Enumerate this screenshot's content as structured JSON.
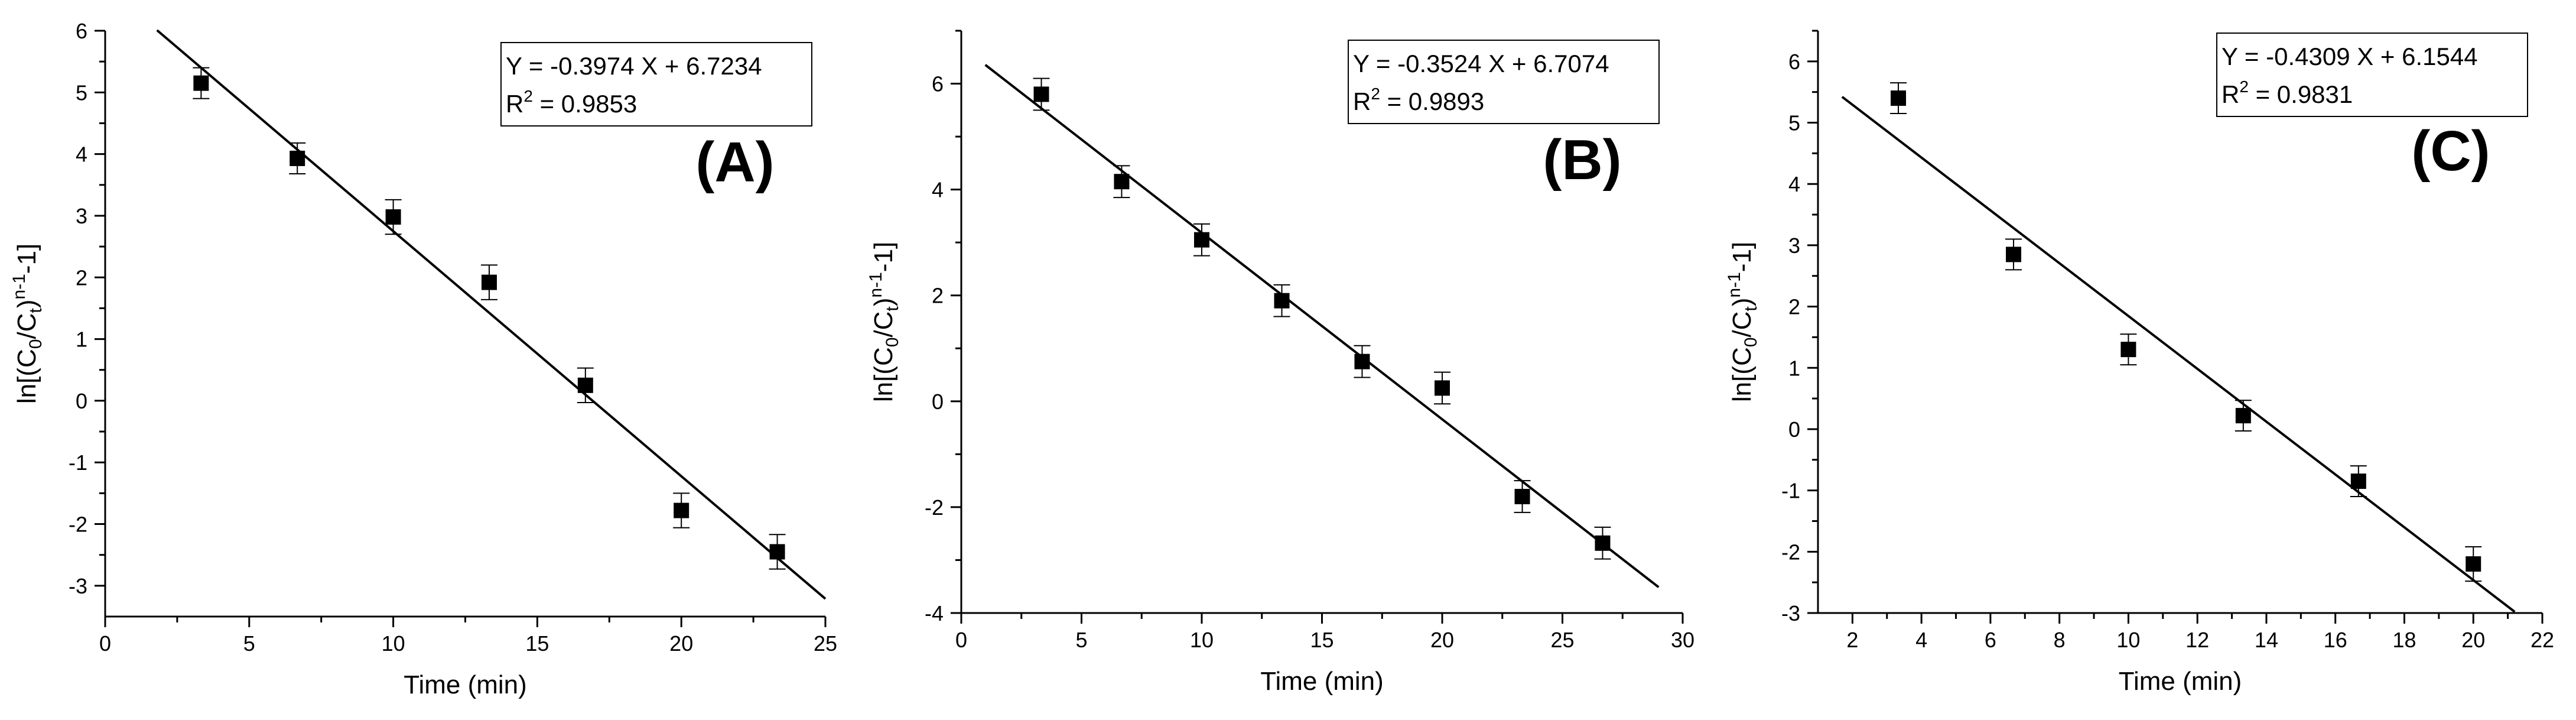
{
  "chart_data": [
    {
      "type": "scatter",
      "panel_label": "(A)",
      "xlabel": "Time (min)",
      "ylabel": {
        "base": "ln[(C",
        "sub0": "0",
        "mid": "/C",
        "sub1": "t",
        "close": ")",
        "sup": "n-1",
        "tail": "-1]"
      },
      "xlim": [
        0,
        25
      ],
      "ylim": [
        -3.5,
        6
      ],
      "xticks": [
        0,
        5,
        10,
        15,
        20,
        25
      ],
      "yticks": [
        -3,
        -2,
        -1,
        0,
        1,
        2,
        3,
        4,
        5,
        6
      ],
      "equation": {
        "line1": "Y = -0.3974 X + 6.7234",
        "r2_prefix": "R",
        "r2_sup": "2",
        "r2_value": " = 0.9853"
      },
      "fit": {
        "slope": -0.3974,
        "intercept": 6.7234,
        "x_range": [
          1.8,
          25
        ]
      },
      "points": [
        {
          "x": 3.33,
          "y": 5.15,
          "err": 0.25
        },
        {
          "x": 6.67,
          "y": 3.93,
          "err": 0.25
        },
        {
          "x": 10.0,
          "y": 2.98,
          "err": 0.28
        },
        {
          "x": 13.33,
          "y": 1.92,
          "err": 0.28
        },
        {
          "x": 16.67,
          "y": 0.25,
          "err": 0.28
        },
        {
          "x": 20.0,
          "y": -1.78,
          "err": 0.28
        },
        {
          "x": 23.33,
          "y": -2.45,
          "err": 0.28
        }
      ],
      "grid": false,
      "legend": "top-right"
    },
    {
      "type": "scatter",
      "panel_label": "(B)",
      "xlabel": "Time (min)",
      "ylabel": {
        "base": "ln[(C",
        "sub0": "0",
        "mid": "/C",
        "sub1": "t",
        "close": ")",
        "sup": "n-1",
        "tail": "-1]"
      },
      "xlim": [
        0,
        30
      ],
      "ylim": [
        -4,
        7
      ],
      "xticks": [
        0,
        5,
        10,
        15,
        20,
        25,
        30
      ],
      "yticks": [
        -4,
        -2,
        0,
        2,
        4,
        6
      ],
      "equation": {
        "line1": "Y = -0.3524 X + 6.7074",
        "r2_prefix": "R",
        "r2_sup": "2",
        "r2_value": " = 0.9893"
      },
      "fit": {
        "slope": -0.3524,
        "intercept": 6.7074,
        "x_range": [
          1,
          29
        ]
      },
      "points": [
        {
          "x": 3.33,
          "y": 5.8,
          "err": 0.3
        },
        {
          "x": 6.67,
          "y": 4.15,
          "err": 0.3
        },
        {
          "x": 10.0,
          "y": 3.05,
          "err": 0.3
        },
        {
          "x": 13.33,
          "y": 1.9,
          "err": 0.3
        },
        {
          "x": 16.67,
          "y": 0.75,
          "err": 0.3
        },
        {
          "x": 20.0,
          "y": 0.25,
          "err": 0.3
        },
        {
          "x": 23.33,
          "y": -1.8,
          "err": 0.3
        },
        {
          "x": 26.67,
          "y": -2.68,
          "err": 0.3
        }
      ],
      "grid": false,
      "legend": "top-right"
    },
    {
      "type": "scatter",
      "panel_label": "(C)",
      "xlabel": "Time (min)",
      "ylabel": {
        "base": "ln[(C",
        "sub0": "0",
        "mid": "/C",
        "sub1": "t",
        "close": ")",
        "sup": "n-1",
        "tail": "-1]"
      },
      "xlim": [
        1,
        22
      ],
      "ylim": [
        -3,
        6.5
      ],
      "xticks": [
        2,
        4,
        6,
        8,
        10,
        12,
        14,
        16,
        18,
        20,
        22
      ],
      "yticks": [
        -3,
        -2,
        -1,
        0,
        1,
        2,
        3,
        4,
        5,
        6
      ],
      "equation": {
        "line1": "Y = -0.4309 X + 6.1544",
        "r2_prefix": "R",
        "r2_sup": "2",
        "r2_value": " = 0.9831"
      },
      "fit": {
        "slope": -0.4309,
        "intercept": 6.1544,
        "x_range": [
          1.7,
          21.2
        ]
      },
      "points": [
        {
          "x": 3.33,
          "y": 5.4,
          "err": 0.25
        },
        {
          "x": 6.67,
          "y": 2.85,
          "err": 0.25
        },
        {
          "x": 10.0,
          "y": 1.3,
          "err": 0.25
        },
        {
          "x": 13.33,
          "y": 0.22,
          "err": 0.25
        },
        {
          "x": 16.67,
          "y": -0.85,
          "err": 0.25
        },
        {
          "x": 20.0,
          "y": -2.2,
          "err": 0.28
        }
      ],
      "grid": false,
      "legend": "top-right"
    }
  ]
}
